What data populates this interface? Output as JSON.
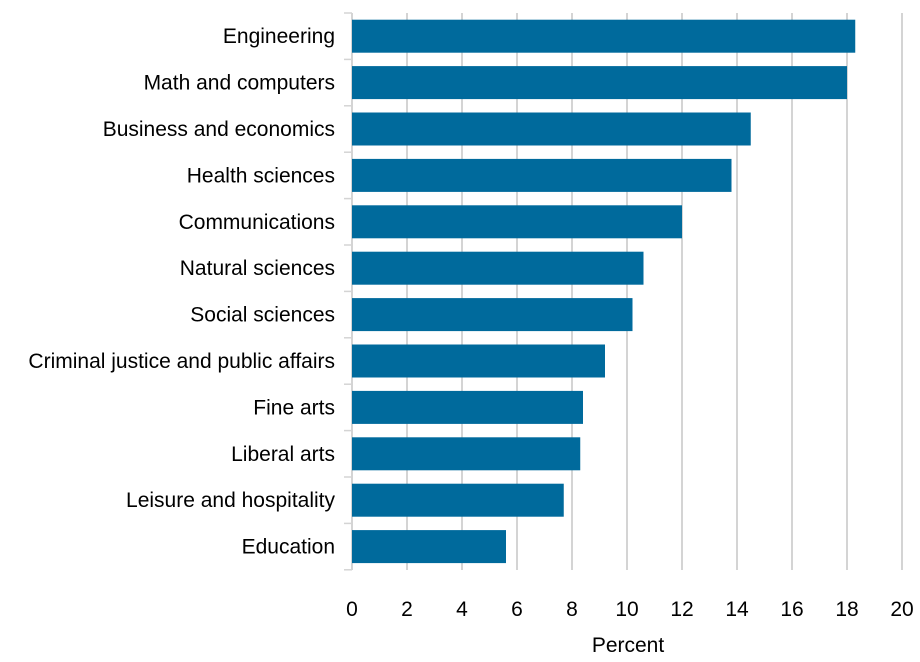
{
  "chart_data": {
    "type": "bar",
    "orientation": "horizontal",
    "categories": [
      "Engineering",
      "Math and computers",
      "Business and economics",
      "Health sciences",
      "Communications",
      "Natural sciences",
      "Social sciences",
      "Criminal justice and public affairs",
      "Fine arts",
      "Liberal arts",
      "Leisure and hospitality",
      "Education"
    ],
    "values": [
      18.3,
      18.0,
      14.5,
      13.8,
      12.0,
      10.6,
      10.2,
      9.2,
      8.4,
      8.3,
      7.7,
      5.6
    ],
    "xlabel": "Percent",
    "ylabel": "",
    "xlim": [
      0,
      20
    ],
    "xticks": [
      "0",
      "2",
      "4",
      "6",
      "8",
      "10",
      "12",
      "14",
      "16",
      "18",
      "20"
    ],
    "grid": "vertical",
    "legend": "none",
    "bar_color": "#006a9c",
    "grid_color": "#d4d4d4"
  }
}
